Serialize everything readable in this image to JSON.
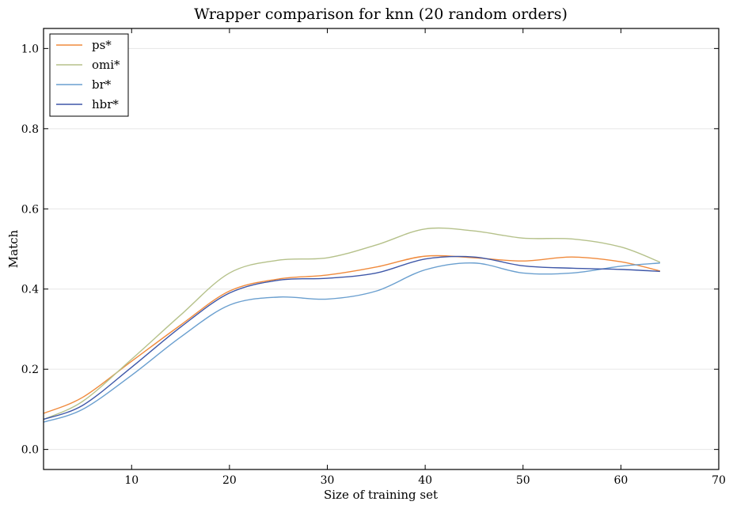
{
  "chart_data": {
    "type": "line",
    "title": "Wrapper comparison for knn (20 random orders)",
    "xlabel": "Size of training set",
    "ylabel": "Match",
    "xlim": [
      1,
      70
    ],
    "ylim": [
      -0.05,
      1.05
    ],
    "xticks": [
      10,
      20,
      30,
      40,
      50,
      60,
      70
    ],
    "yticks": [
      0.0,
      0.2,
      0.4,
      0.6,
      0.8,
      1.0
    ],
    "ytick_labels": [
      "0.0",
      "0.2",
      "0.4",
      "0.6",
      "0.8",
      "1.0"
    ],
    "grid": "horizontal",
    "legend_position": "top-left",
    "series": [
      {
        "name": "ps*",
        "color": "#f08a3c",
        "points": [
          [
            1,
            0.09
          ],
          [
            5,
            0.13
          ],
          [
            10,
            0.22
          ],
          [
            15,
            0.31
          ],
          [
            20,
            0.395
          ],
          [
            25,
            0.425
          ],
          [
            30,
            0.435
          ],
          [
            35,
            0.455
          ],
          [
            40,
            0.482
          ],
          [
            45,
            0.478
          ],
          [
            50,
            0.47
          ],
          [
            55,
            0.48
          ],
          [
            60,
            0.468
          ],
          [
            64,
            0.445
          ]
        ]
      },
      {
        "name": "omi*",
        "color": "#b5c18a",
        "points": [
          [
            1,
            0.075
          ],
          [
            5,
            0.12
          ],
          [
            10,
            0.225
          ],
          [
            15,
            0.335
          ],
          [
            20,
            0.44
          ],
          [
            25,
            0.472
          ],
          [
            30,
            0.478
          ],
          [
            35,
            0.51
          ],
          [
            40,
            0.55
          ],
          [
            45,
            0.545
          ],
          [
            50,
            0.527
          ],
          [
            55,
            0.525
          ],
          [
            60,
            0.505
          ],
          [
            64,
            0.467
          ]
        ]
      },
      {
        "name": "br*",
        "color": "#6a9fcf",
        "points": [
          [
            1,
            0.068
          ],
          [
            5,
            0.1
          ],
          [
            10,
            0.185
          ],
          [
            15,
            0.28
          ],
          [
            20,
            0.36
          ],
          [
            25,
            0.38
          ],
          [
            30,
            0.375
          ],
          [
            35,
            0.395
          ],
          [
            40,
            0.448
          ],
          [
            45,
            0.465
          ],
          [
            50,
            0.44
          ],
          [
            55,
            0.44
          ],
          [
            60,
            0.457
          ],
          [
            64,
            0.465
          ]
        ]
      },
      {
        "name": "hbr*",
        "color": "#3e57a8",
        "points": [
          [
            1,
            0.075
          ],
          [
            5,
            0.11
          ],
          [
            10,
            0.205
          ],
          [
            15,
            0.305
          ],
          [
            20,
            0.39
          ],
          [
            25,
            0.422
          ],
          [
            30,
            0.427
          ],
          [
            35,
            0.44
          ],
          [
            40,
            0.475
          ],
          [
            45,
            0.48
          ],
          [
            50,
            0.458
          ],
          [
            55,
            0.452
          ],
          [
            60,
            0.449
          ],
          [
            64,
            0.444
          ]
        ]
      }
    ]
  }
}
